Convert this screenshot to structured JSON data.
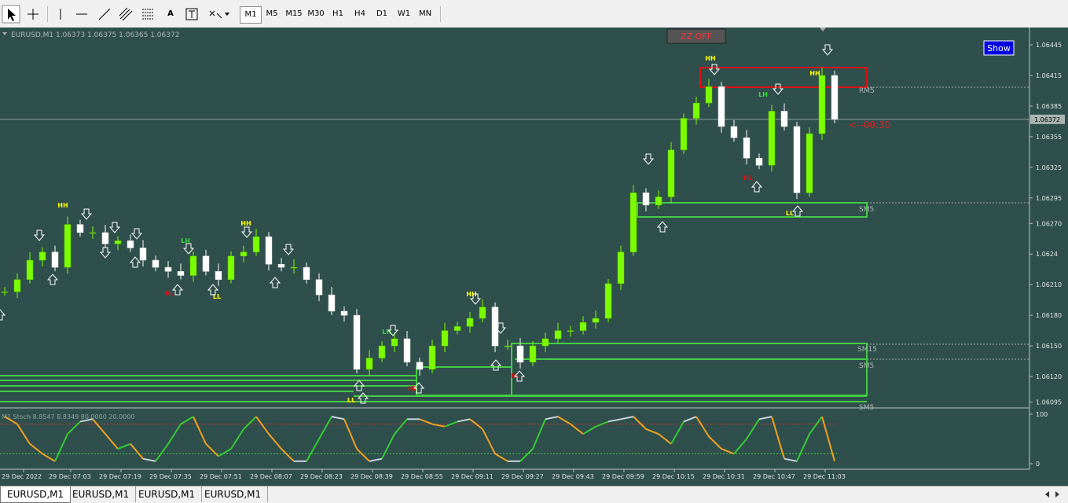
{
  "toolbar": {
    "text_tool": "A",
    "timeframes": [
      "M1",
      "M5",
      "M15",
      "M30",
      "H1",
      "H4",
      "D1",
      "W1",
      "MN"
    ]
  },
  "chart": {
    "header": "EURUSD,M1  1.06373 1.06375 1.06365 1.06372",
    "zz_button": "ZZ OFF",
    "show_button": "Show",
    "timer": "<--00:30",
    "ylim": [
      1.0609,
      1.06462
    ],
    "yticks": [
      1.06445,
      1.06415,
      1.06385,
      1.06355,
      1.06325,
      1.06295,
      {
        "value": 1.0627,
        "label": "1.06270"
      },
      1.0624,
      {
        "value": 1.0621,
        "label": "1.06210"
      },
      {
        "value": 1.0618,
        "label": "1.06180"
      },
      {
        "value": 1.0615,
        "label": "1.06150"
      },
      {
        "value": 1.0612,
        "label": "1.06120"
      },
      1.06095
    ],
    "current_price": 1.06372,
    "closes": [
      1.06203,
      1.06215,
      1.06234,
      1.06242,
      1.06227,
      1.06269,
      1.06261,
      1.06261,
      1.0625,
      1.06253,
      1.06246,
      1.06234,
      1.06227,
      1.06223,
      1.06219,
      1.06238,
      1.06223,
      1.06215,
      1.06238,
      1.06242,
      1.06257,
      1.0623,
      1.06227,
      1.06227,
      1.06215,
      1.062,
      1.06184,
      1.0618,
      1.06127,
      1.06138,
      1.0615,
      1.06157,
      1.06134,
      1.06127,
      1.0615,
      1.06165,
      1.06169,
      1.06177,
      1.06188,
      1.0615,
      1.0615,
      1.06134,
      1.0615,
      1.06157,
      1.06165,
      1.06165,
      1.06173,
      1.06177,
      1.06211,
      1.06242,
      1.063,
      1.06288,
      1.06296,
      1.06342,
      1.06373,
      1.06388,
      1.06404,
      1.06365,
      1.06354,
      1.06334,
      1.06327,
      1.0638,
      1.06365,
      1.063,
      1.06358,
      1.06415,
      1.06372
    ],
    "swing_labels": [
      "HH",
      "HH",
      "LH",
      "HL",
      "LL",
      "HH",
      "LH",
      "HL",
      "LL",
      "HH",
      "HH",
      "LH",
      "HL",
      "LL",
      "HL"
    ],
    "zone_labels": [
      "RM5",
      "SM5",
      "SM15",
      "SM5",
      "SM5"
    ],
    "time_labels": [
      "29 Dec 2022",
      "29 Dec 07:03",
      "29 Dec 07:19",
      "29 Dec 07:35",
      "29 Dec 07:51",
      "29 Dec 08:07",
      "29 Dec 08:23",
      "29 Dec 08:39",
      "29 Dec 08:55",
      "29 Dec 09:11",
      "29 Dec 09:27",
      "29 Dec 09:43",
      "29 Dec 09:59",
      "29 Dec 10:15",
      "29 Dec 10:31",
      "29 Dec 10:47",
      "29 Dec 11:03"
    ],
    "stoch": {
      "title": "M1 Stoch 8.8547 8.8349 80.0000 20.0000",
      "ylim": [
        0,
        100
      ],
      "yticks": [
        100,
        0
      ],
      "levels": [
        80,
        20
      ],
      "values": [
        95,
        80,
        40,
        20,
        5,
        60,
        85,
        90,
        60,
        30,
        40,
        10,
        5,
        40,
        80,
        95,
        40,
        15,
        30,
        70,
        95,
        60,
        30,
        5,
        5,
        50,
        95,
        90,
        30,
        5,
        10,
        60,
        90,
        90,
        80,
        75,
        85,
        90,
        70,
        20,
        5,
        5,
        30,
        90,
        95,
        80,
        60,
        75,
        85,
        90,
        95,
        70,
        60,
        40,
        85,
        95,
        55,
        30,
        20,
        50,
        90,
        95,
        10,
        5,
        60,
        95,
        5
      ]
    }
  },
  "tabs": [
    "EURUSD,M1",
    "EURUSD,M1",
    "EURUSD,M1",
    "EURUSD,M1"
  ]
}
